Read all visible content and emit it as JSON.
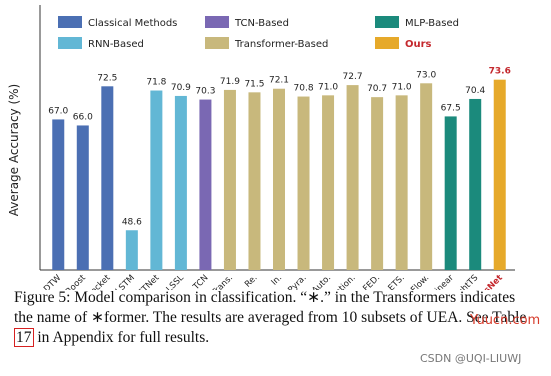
{
  "chart_data": {
    "type": "bar",
    "y_label": "Average Accuracy (%)",
    "categories": [
      "DTW",
      "XGBoost",
      "Rocket",
      "LSTM",
      "LSTNet",
      "LSSL",
      "TCN",
      "Trans.",
      "Re.",
      "In.",
      "Pyra.",
      "Auto.",
      "Station.",
      "FED.",
      "ETS.",
      "Flow.",
      "DLinear",
      "LightTS",
      "TimesNet"
    ],
    "values": [
      67.0,
      66.0,
      72.5,
      48.6,
      71.8,
      70.9,
      70.3,
      71.9,
      71.5,
      72.1,
      70.8,
      71.0,
      72.7,
      70.7,
      71.0,
      73.0,
      67.5,
      70.4,
      73.6
    ],
    "value_labels": [
      "67.0",
      "66.0",
      "72.5",
      "48.6",
      "71.8",
      "70.9",
      "70.3",
      "71.9",
      "71.5",
      "72.1",
      "70.8",
      "71.0",
      "72.7",
      "70.7",
      "71.0",
      "73.0",
      "67.5",
      "70.4",
      "73.6"
    ],
    "colors": [
      "#4b6fb3",
      "#4b6fb3",
      "#4b6fb3",
      "#62b7d5",
      "#62b7d5",
      "#62b7d5",
      "#7a68b3",
      "#c8b87c",
      "#c8b87c",
      "#c8b87c",
      "#c8b87c",
      "#c8b87c",
      "#c8b87c",
      "#c8b87c",
      "#c8b87c",
      "#c8b87c",
      "#1b8a7c",
      "#1b8a7c",
      "#e6a92a"
    ],
    "legend": [
      {
        "name": "Classical Methods",
        "color": "#4b6fb3"
      },
      {
        "name": "TCN-Based",
        "color": "#7a68b3"
      },
      {
        "name": "MLP-Based",
        "color": "#1b8a7c"
      },
      {
        "name": "RNN-Based",
        "color": "#62b7d5"
      },
      {
        "name": "Transformer-Based",
        "color": "#c8b87c"
      },
      {
        "name": "Ours",
        "color": "#e6a92a",
        "label_color": "#c4282d"
      }
    ],
    "ylim": [
      42,
      86
    ]
  },
  "caption": {
    "before": "Figure 5: Model comparison in classification. “∗.” in the Transformers indicates the name of ∗former. The results are averaged from 10 subsets of UEA. See Table ",
    "ref": "17",
    "after": " in Appendix for full results."
  },
  "watermarks": [
    "Yuucn.com",
    "CSDN @UQI-LIUWJ"
  ]
}
